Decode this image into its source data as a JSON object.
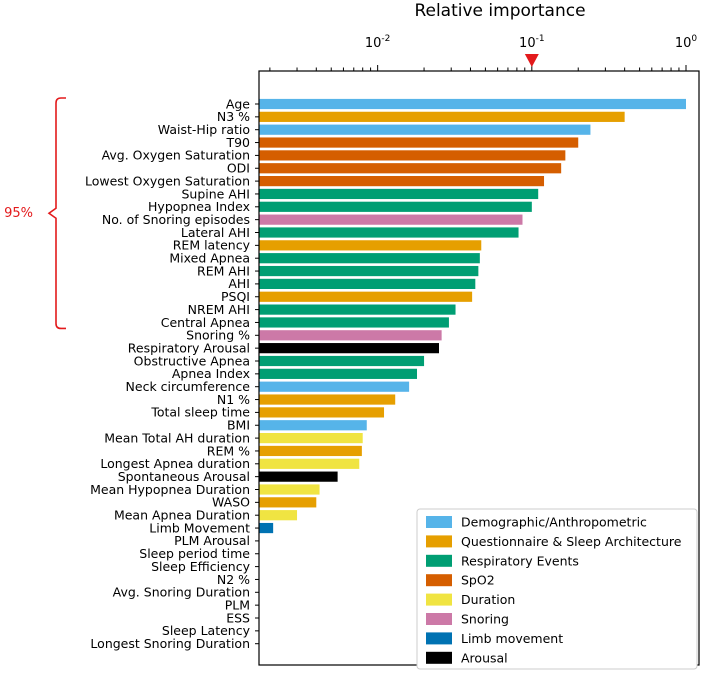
{
  "chart_data": {
    "type": "bar",
    "orientation": "horizontal",
    "title": "Relative importance",
    "xscale": "log",
    "xlim": [
      0.0017,
      1.0
    ],
    "x_ticks": [
      {
        "value": 0.01,
        "base": "10",
        "exp": "-2"
      },
      {
        "value": 0.1,
        "base": "10",
        "exp": "-1"
      },
      {
        "value": 1,
        "base": "10",
        "exp": "0"
      }
    ],
    "marker": {
      "value": 0.1,
      "color": "#e31a1c"
    },
    "bracket": {
      "label": "95%",
      "from": "Age",
      "to": "Central Apnea",
      "color": "#e31a1c"
    },
    "categories": [
      {
        "name": "Demographic/Anthropometric",
        "color": "#56b4e9"
      },
      {
        "name": "Questionnaire & Sleep Architecture",
        "color": "#e69f00"
      },
      {
        "name": "Respiratory Events",
        "color": "#009e73"
      },
      {
        "name": "SpO2",
        "color": "#d55e00"
      },
      {
        "name": "Duration",
        "color": "#f0e442"
      },
      {
        "name": "Snoring",
        "color": "#cc79a7"
      },
      {
        "name": "Limb movement",
        "color": "#0072b2"
      },
      {
        "name": "Arousal",
        "color": "#000000"
      }
    ],
    "bars": [
      {
        "label": "Age",
        "value": 1.0,
        "category": "Demographic/Anthropometric"
      },
      {
        "label": "N3 %",
        "value": 0.4,
        "category": "Questionnaire & Sleep Architecture"
      },
      {
        "label": "Waist-Hip ratio",
        "value": 0.24,
        "category": "Demographic/Anthropometric"
      },
      {
        "label": "T90",
        "value": 0.2,
        "category": "SpO2"
      },
      {
        "label": "Avg. Oxygen Saturation",
        "value": 0.165,
        "category": "SpO2"
      },
      {
        "label": "ODI",
        "value": 0.155,
        "category": "SpO2"
      },
      {
        "label": "Lowest Oxygen Saturation",
        "value": 0.12,
        "category": "SpO2"
      },
      {
        "label": "Supine AHI",
        "value": 0.11,
        "category": "Respiratory Events"
      },
      {
        "label": "Hypopnea Index",
        "value": 0.1,
        "category": "Respiratory Events"
      },
      {
        "label": "No. of Snoring episodes",
        "value": 0.087,
        "category": "Snoring"
      },
      {
        "label": "Lateral AHI",
        "value": 0.082,
        "category": "Respiratory Events"
      },
      {
        "label": "REM latency",
        "value": 0.047,
        "category": "Questionnaire & Sleep Architecture"
      },
      {
        "label": "Mixed Apnea",
        "value": 0.046,
        "category": "Respiratory Events"
      },
      {
        "label": "REM AHI",
        "value": 0.045,
        "category": "Respiratory Events"
      },
      {
        "label": "AHI",
        "value": 0.043,
        "category": "Respiratory Events"
      },
      {
        "label": "PSQI",
        "value": 0.041,
        "category": "Questionnaire & Sleep Architecture"
      },
      {
        "label": "NREM AHI",
        "value": 0.032,
        "category": "Respiratory Events"
      },
      {
        "label": "Central Apnea",
        "value": 0.029,
        "category": "Respiratory Events"
      },
      {
        "label": "Snoring %",
        "value": 0.026,
        "category": "Snoring"
      },
      {
        "label": "Respiratory Arousal",
        "value": 0.025,
        "category": "Arousal"
      },
      {
        "label": "Obstructive Apnea",
        "value": 0.02,
        "category": "Respiratory Events"
      },
      {
        "label": "Apnea Index",
        "value": 0.018,
        "category": "Respiratory Events"
      },
      {
        "label": "Neck circumference",
        "value": 0.016,
        "category": "Demographic/Anthropometric"
      },
      {
        "label": "N1 %",
        "value": 0.013,
        "category": "Questionnaire & Sleep Architecture"
      },
      {
        "label": "Total sleep time",
        "value": 0.011,
        "category": "Questionnaire & Sleep Architecture"
      },
      {
        "label": "BMI",
        "value": 0.0085,
        "category": "Demographic/Anthropometric"
      },
      {
        "label": "Mean Total AH duration",
        "value": 0.008,
        "category": "Duration"
      },
      {
        "label": "REM %",
        "value": 0.0079,
        "category": "Questionnaire & Sleep Architecture"
      },
      {
        "label": "Longest Apnea duration",
        "value": 0.0076,
        "category": "Duration"
      },
      {
        "label": "Spontaneous Arousal",
        "value": 0.0055,
        "category": "Arousal"
      },
      {
        "label": "Mean Hypopnea Duration",
        "value": 0.0042,
        "category": "Duration"
      },
      {
        "label": "WASO",
        "value": 0.004,
        "category": "Questionnaire & Sleep Architecture"
      },
      {
        "label": "Mean Apnea Duration",
        "value": 0.003,
        "category": "Duration"
      },
      {
        "label": "Limb Movement",
        "value": 0.0021,
        "category": "Limb movement"
      },
      {
        "label": "PLM Arousal",
        "value": 0,
        "category": "Limb movement"
      },
      {
        "label": "Sleep period time",
        "value": 0,
        "category": "Questionnaire & Sleep Architecture"
      },
      {
        "label": "Sleep Efficiency",
        "value": 0,
        "category": "Questionnaire & Sleep Architecture"
      },
      {
        "label": "N2 %",
        "value": 0,
        "category": "Questionnaire & Sleep Architecture"
      },
      {
        "label": "Avg. Snoring Duration",
        "value": 0,
        "category": "Snoring"
      },
      {
        "label": "PLM",
        "value": 0,
        "category": "Limb movement"
      },
      {
        "label": "ESS",
        "value": 0,
        "category": "Questionnaire & Sleep Architecture"
      },
      {
        "label": "Sleep Latency",
        "value": 0,
        "category": "Questionnaire & Sleep Architecture"
      },
      {
        "label": "Longest Snoring Duration",
        "value": 0,
        "category": "Snoring"
      }
    ]
  }
}
